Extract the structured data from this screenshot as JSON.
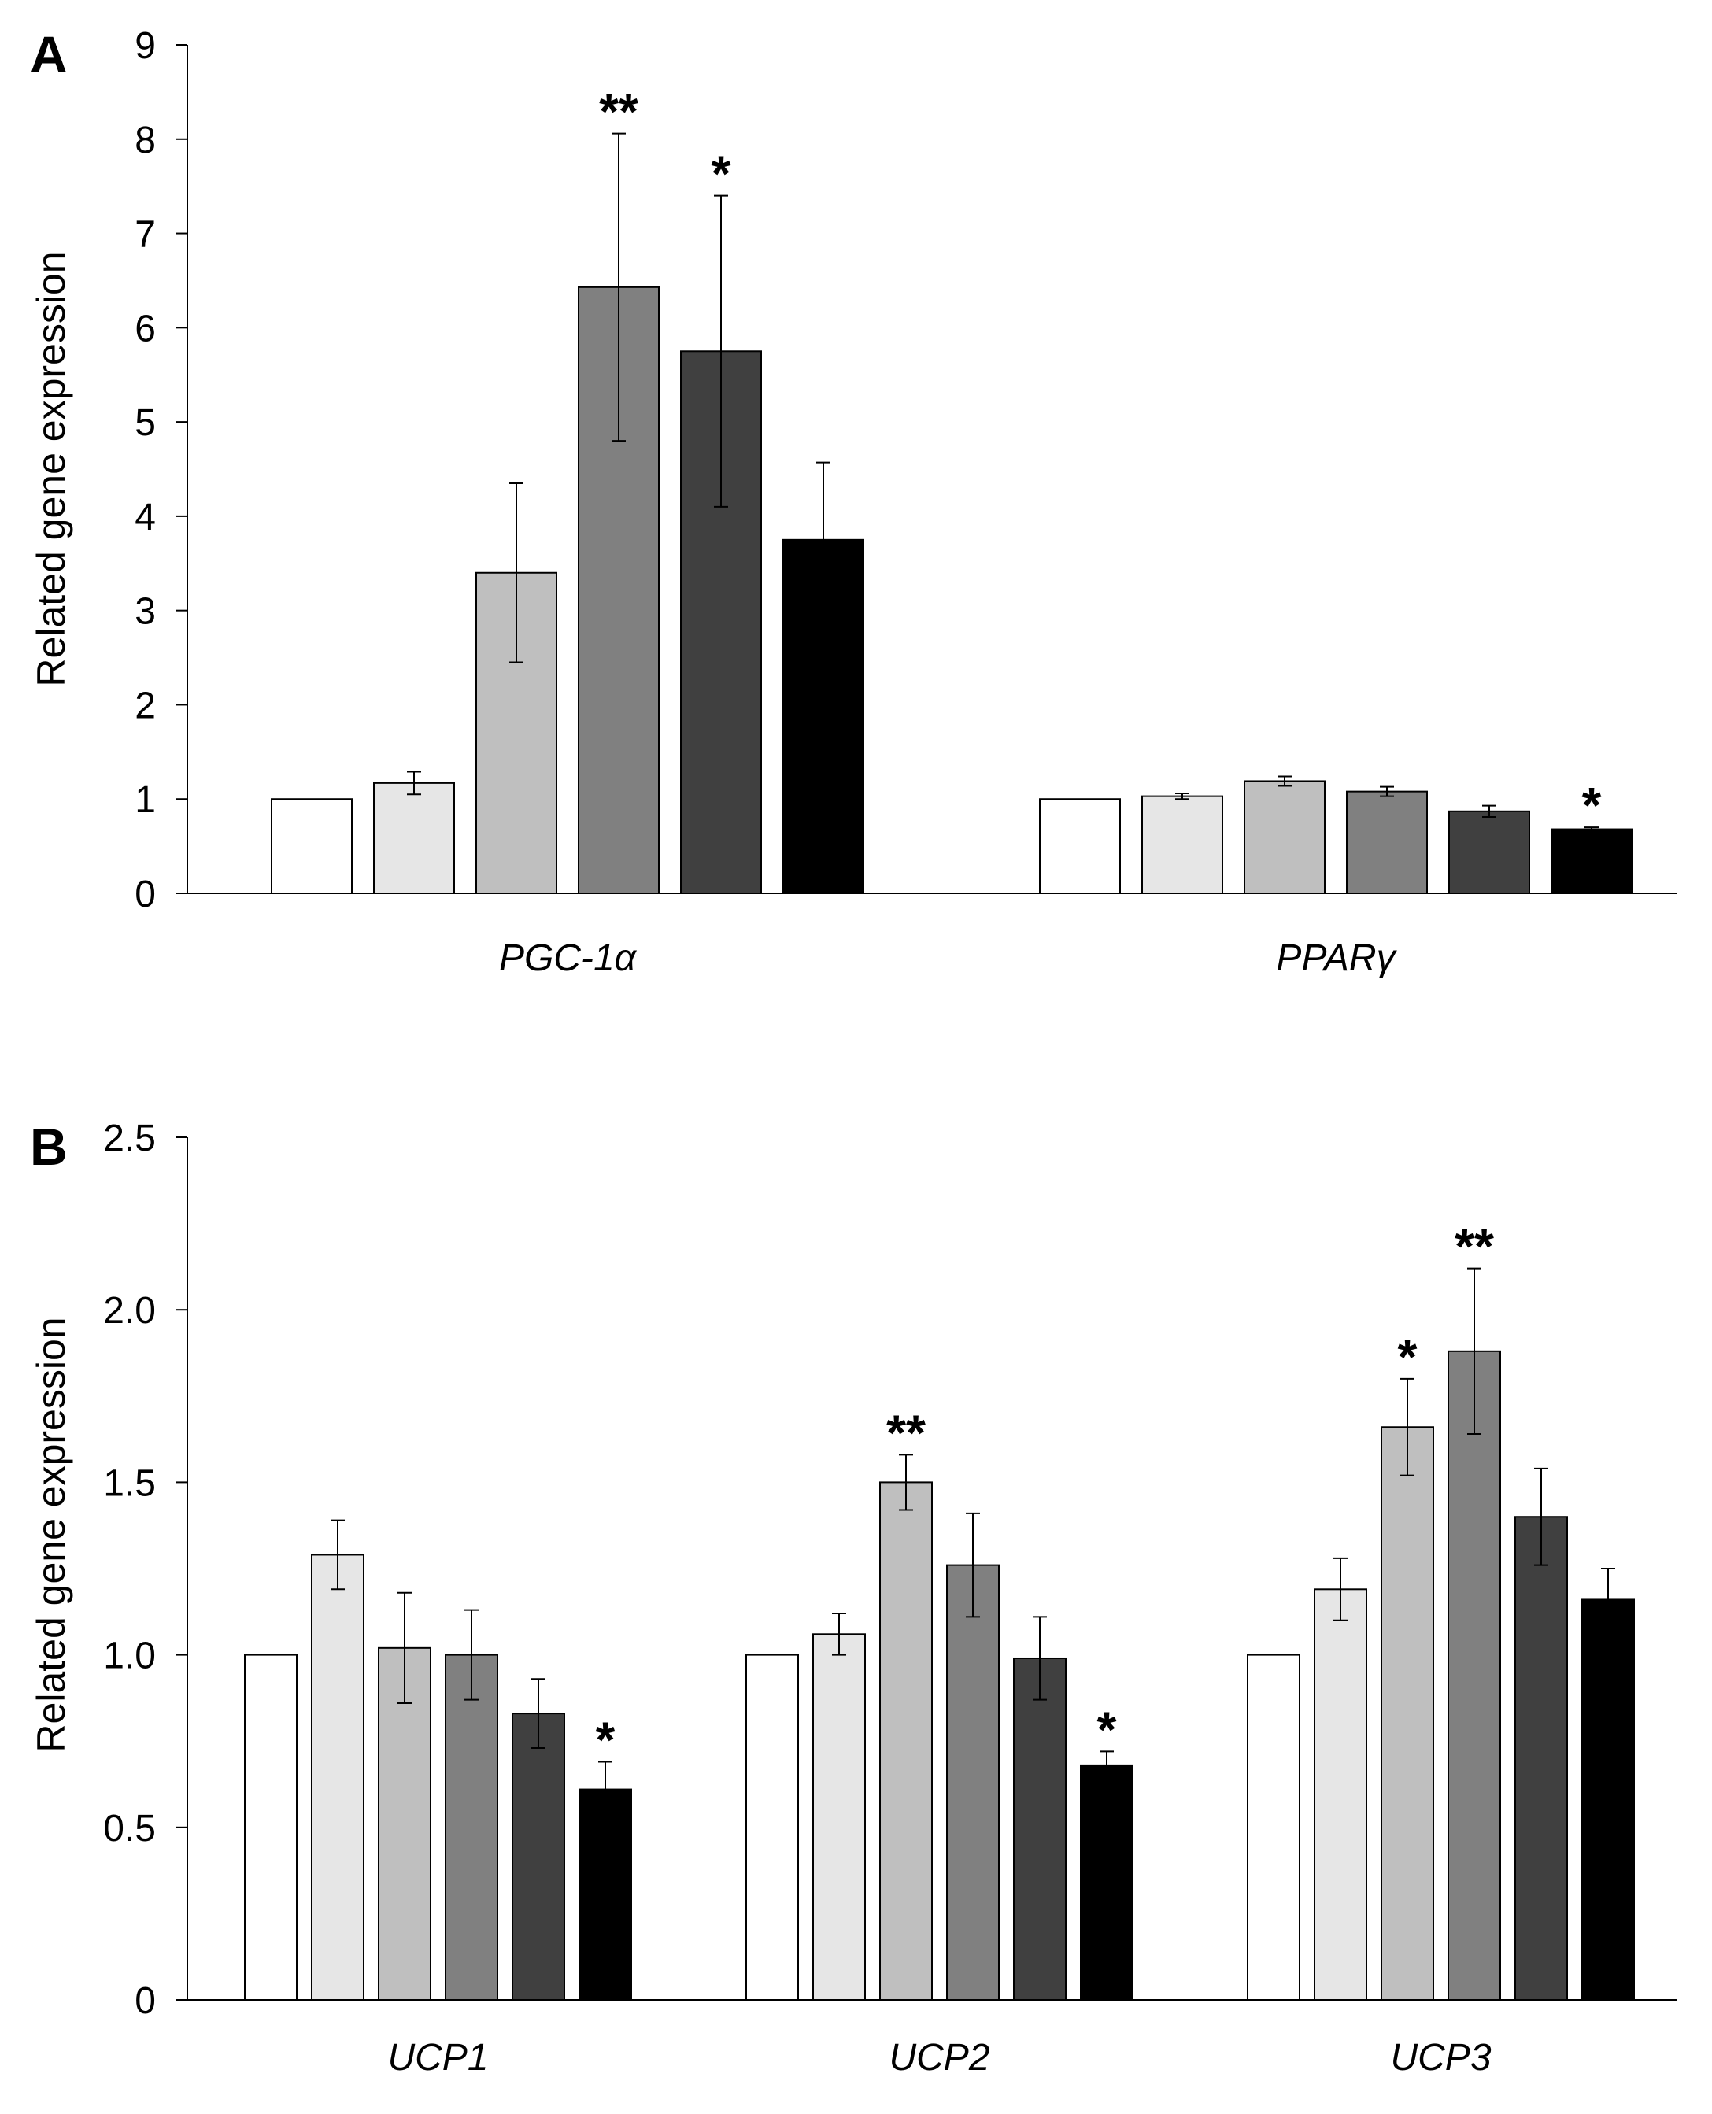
{
  "chart_data": [
    {
      "panel_label": "A",
      "type": "bar",
      "ylabel": "Related gene expression",
      "ylim": [
        0,
        9
      ],
      "y_ticks": [
        "0",
        "1",
        "2",
        "3",
        "4",
        "5",
        "6",
        "7",
        "8",
        "9"
      ],
      "categories": [
        "PGC-1α",
        "PPARγ"
      ],
      "series_colors": [
        "#ffffff",
        "#e6e6e6",
        "#bfbfbf",
        "#808080",
        "#404040",
        "#000000"
      ],
      "groups": [
        {
          "values": [
            1.0,
            1.17,
            3.4,
            6.43,
            5.75,
            3.75
          ],
          "errors": [
            0.0,
            0.12,
            0.95,
            1.63,
            1.65,
            0.82
          ],
          "significance": [
            "",
            "",
            "",
            "**",
            "*",
            ""
          ]
        },
        {
          "values": [
            1.0,
            1.03,
            1.19,
            1.08,
            0.87,
            0.68
          ],
          "errors": [
            0.0,
            0.03,
            0.05,
            0.05,
            0.06,
            0.02
          ],
          "significance": [
            "",
            "",
            "",
            "",
            "",
            "*"
          ]
        }
      ]
    },
    {
      "panel_label": "B",
      "type": "bar",
      "ylabel": "Related gene expression",
      "ylim": [
        0,
        2.5
      ],
      "y_ticks": [
        "0",
        "0.5",
        "1.0",
        "1.5",
        "2.0",
        "2.5"
      ],
      "categories": [
        "UCP1",
        "UCP2",
        "UCP3"
      ],
      "series_colors": [
        "#ffffff",
        "#e6e6e6",
        "#bfbfbf",
        "#808080",
        "#404040",
        "#000000"
      ],
      "groups": [
        {
          "values": [
            1.0,
            1.29,
            1.02,
            1.0,
            0.83,
            0.61
          ],
          "errors": [
            0.0,
            0.1,
            0.16,
            0.13,
            0.1,
            0.08
          ],
          "significance": [
            "",
            "",
            "",
            "",
            "",
            "*"
          ]
        },
        {
          "values": [
            1.0,
            1.06,
            1.5,
            1.26,
            0.99,
            0.68
          ],
          "errors": [
            0.0,
            0.06,
            0.08,
            0.15,
            0.12,
            0.04
          ],
          "significance": [
            "",
            "",
            "**",
            "",
            "",
            "*"
          ]
        },
        {
          "values": [
            1.0,
            1.19,
            1.66,
            1.88,
            1.4,
            1.16
          ],
          "errors": [
            0.0,
            0.09,
            0.14,
            0.24,
            0.14,
            0.09
          ],
          "significance": [
            "",
            "",
            "*",
            "**",
            "",
            ""
          ]
        }
      ]
    }
  ]
}
